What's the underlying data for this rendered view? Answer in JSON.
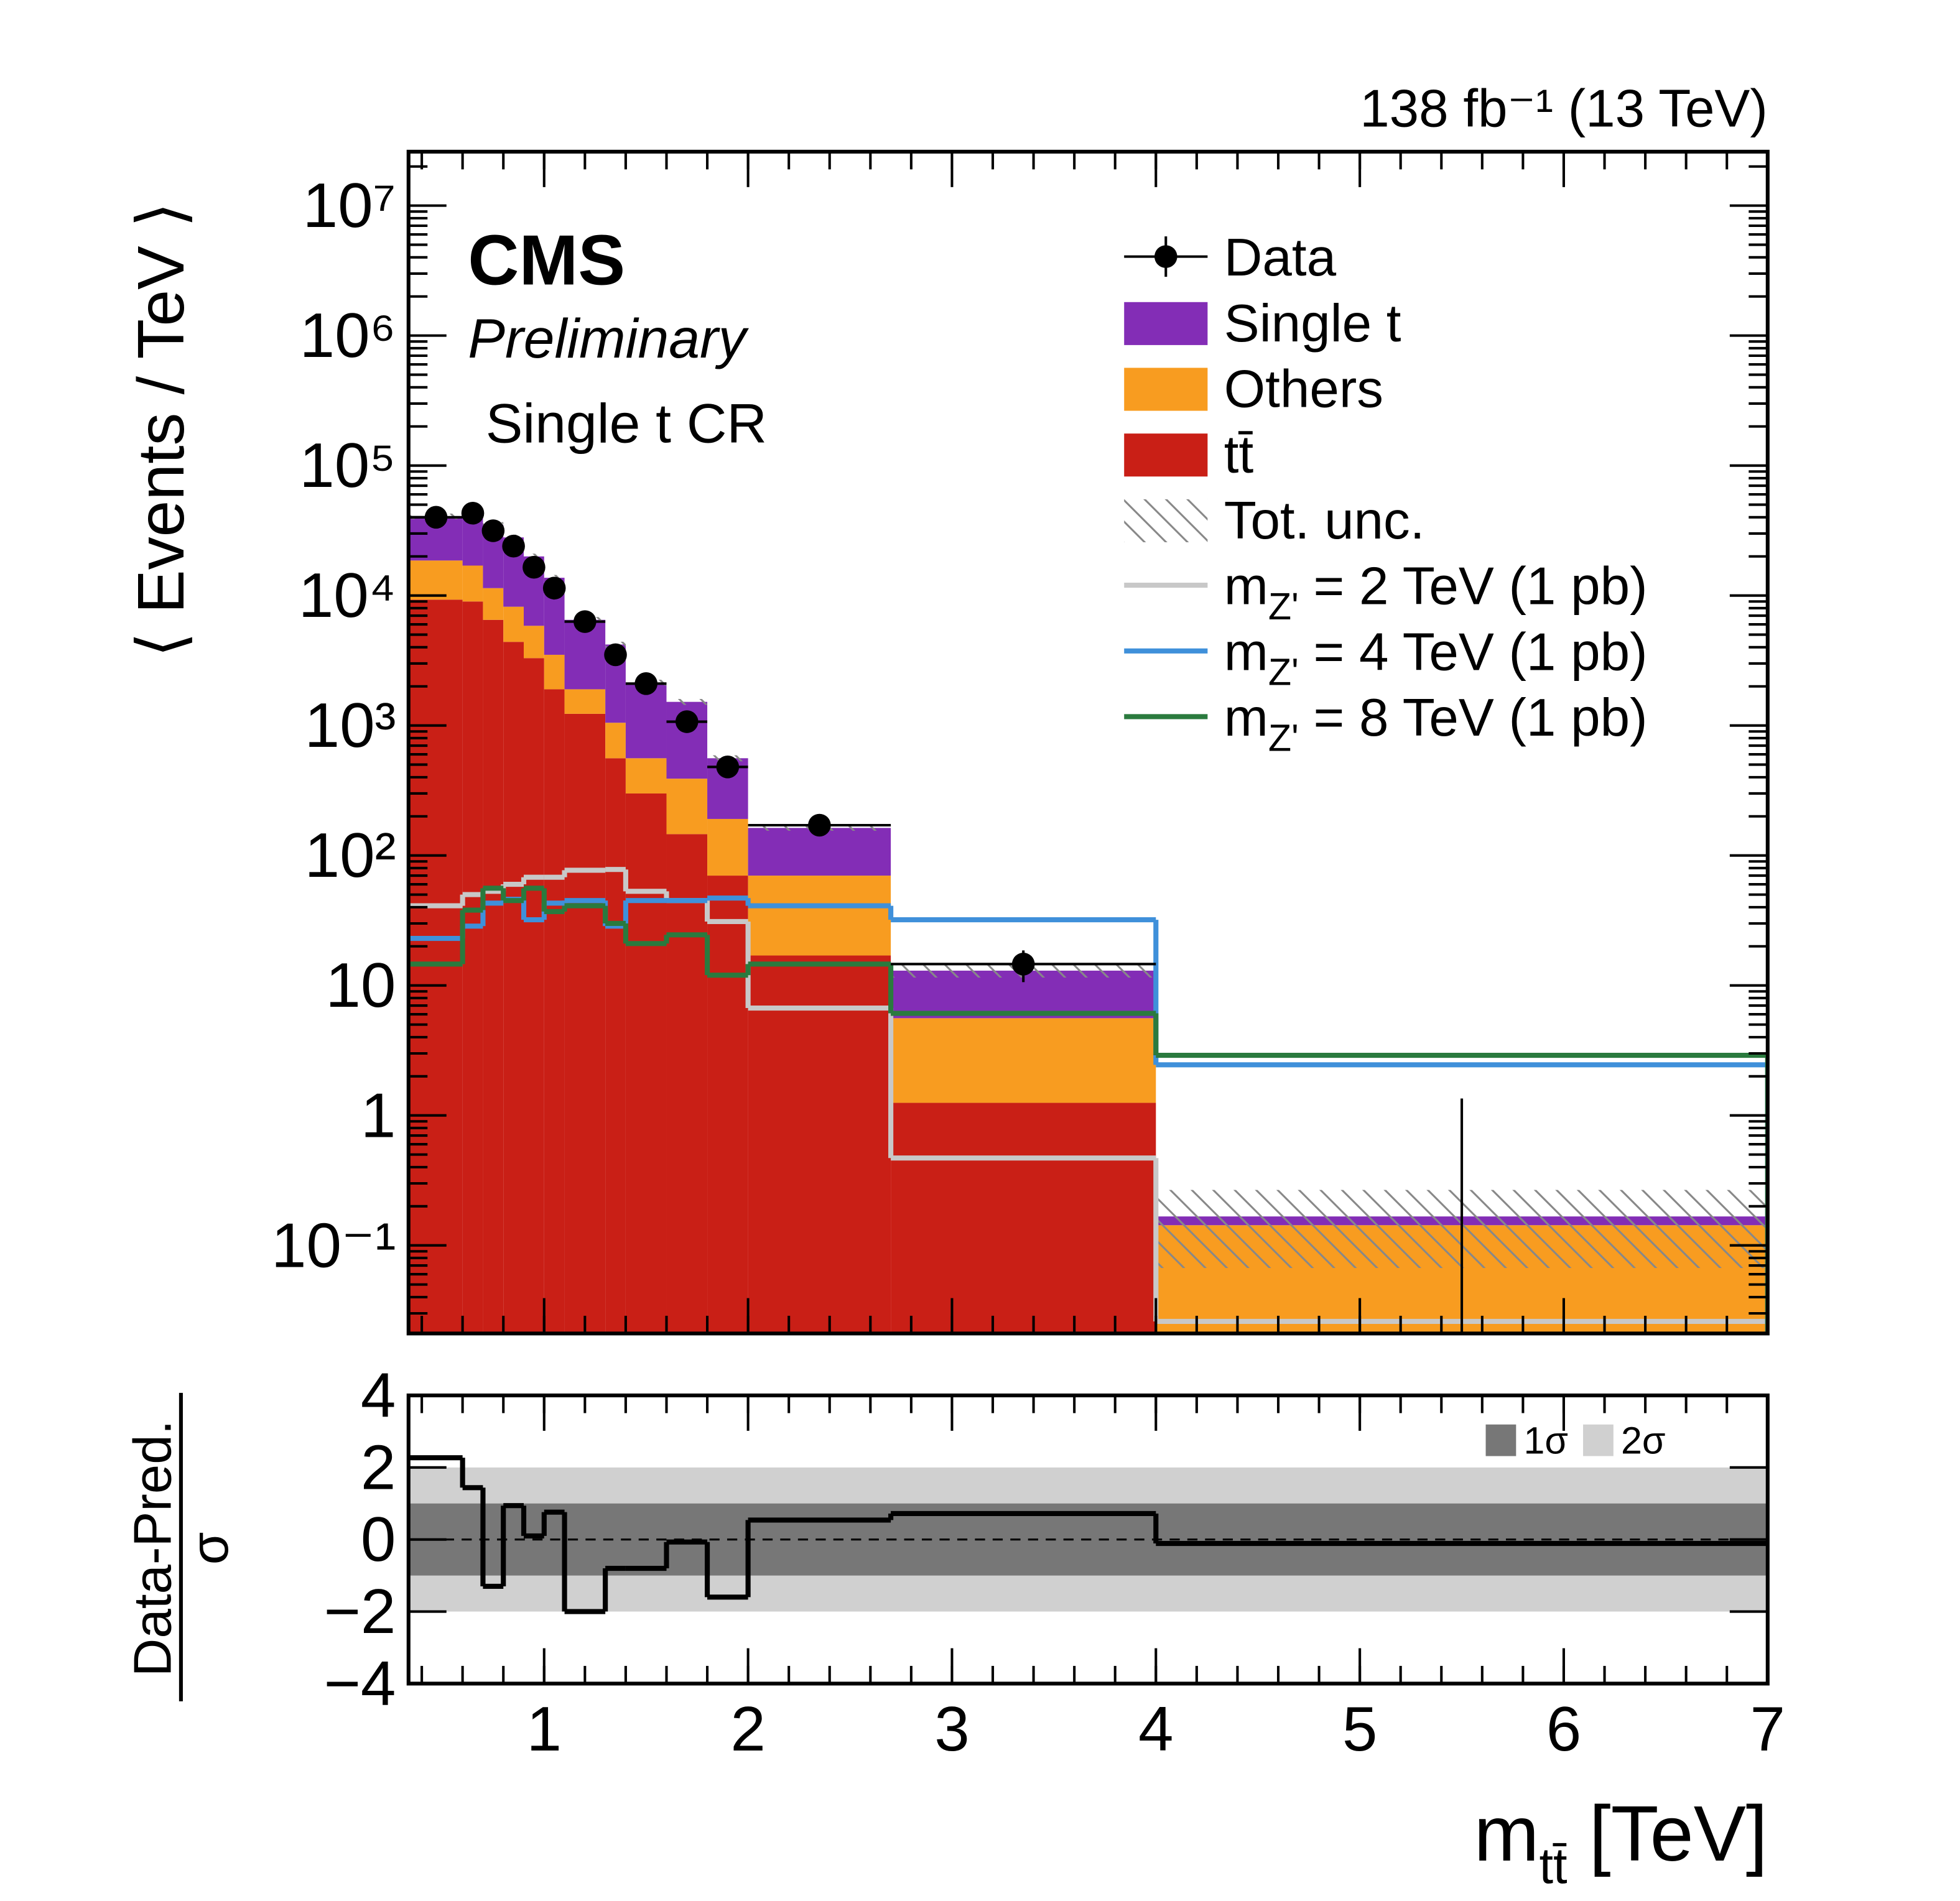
{
  "chart_data": [
    {
      "type": "stacked_histogram",
      "lumi_label": "138 fb⁻¹ (13 TeV)",
      "cms_label": "CMS",
      "preliminary_label": "Preliminary",
      "region_label": "Single t CR",
      "ylabel": "⟨ Events / TeV ⟩",
      "log_y": true,
      "bins": [
        0.34,
        0.6,
        0.7,
        0.8,
        0.9,
        1.0,
        1.1,
        1.3,
        1.4,
        1.6,
        1.8,
        2.0,
        2.7,
        4.0,
        7.0
      ],
      "xlim": [
        0.335,
        7
      ],
      "ylim": [
        0.021,
        26000000
      ],
      "yticks": [
        {
          "value": 0.1,
          "label": "10⁻¹"
        },
        1,
        10,
        {
          "value": 100,
          "label": "10²"
        },
        {
          "value": 1000,
          "label": "10³"
        },
        {
          "value": 10000,
          "label": "10⁴"
        },
        {
          "value": 100000,
          "label": "10⁵"
        },
        {
          "value": 1000000,
          "label": "10⁶"
        },
        {
          "value": 10000000,
          "label": "10⁷"
        }
      ],
      "series": [
        {
          "name": "tt̄",
          "color": "#c91f16",
          "values": [
            9300,
            9000,
            6500,
            4400,
            3300,
            1900,
            1230,
            560,
            300,
            146,
            70,
            17,
            1.25,
            0.01
          ]
        },
        {
          "name": "Others",
          "color": "#f89c20",
          "values": [
            9300,
            8000,
            4900,
            3800,
            2550,
            1600,
            670,
            490,
            260,
            244,
            121,
            53,
            4.35,
            0.133
          ]
        },
        {
          "name": "Single t",
          "color": "#832db6",
          "values": [
            22100,
            23700,
            23600,
            19800,
            14150,
            10200,
            4600,
            3150,
            1580,
            1130,
            369,
            93,
            7.4,
            0.024
          ]
        }
      ],
      "uncertainty": {
        "name": "Tot. unc.",
        "values": [
          2000,
          2000,
          1700,
          1400,
          1000,
          700,
          330,
          210,
          110,
          80,
          30,
          8,
          1.5,
          0.1
        ]
      },
      "data": {
        "name": "Data",
        "color": "#000000",
        "values": [
          40000,
          43000,
          31500,
          24000,
          16500,
          11400,
          6300,
          3500,
          2100,
          1070,
          480,
          171,
          14.6,
          0
        ],
        "errors": [
          400,
          400,
          350,
          300,
          250,
          200,
          150,
          110,
          80,
          60,
          40,
          15,
          4,
          1.35
        ]
      },
      "signals": [
        {
          "name": [
            "m",
            "Z'",
            " = 2 TeV (1 pb)"
          ],
          "color": "#c8c8c8",
          "values": [
            41,
            50,
            53,
            60,
            68,
            68,
            77,
            78,
            53,
            45,
            31,
            6.7,
            0.47,
            0.026
          ]
        },
        {
          "name": [
            "m",
            "Z'",
            " = 4 TeV (1 pb)"
          ],
          "color": "#3f90da",
          "values": [
            23,
            28.6,
            43,
            46,
            32,
            43,
            45,
            28.6,
            45,
            45,
            47,
            41,
            32,
            2.45
          ]
        },
        {
          "name": [
            "m",
            "Z'",
            " = 8 TeV (1 pb)"
          ],
          "color": "#2a7a3e",
          "values": [
            14.6,
            38,
            56,
            45,
            56,
            37,
            41,
            30,
            21,
            24.5,
            12,
            14.6,
            6.1,
            2.9
          ]
        }
      ]
    },
    {
      "type": "step",
      "ylabel": [
        "Data-Pred.",
        "σ"
      ],
      "xlabel": [
        "m",
        "tt̄",
        " [TeV]"
      ],
      "values": [
        2.27,
        1.44,
        -1.3,
        0.94,
        0.1,
        0.76,
        -2.0,
        -0.8,
        -0.8,
        -0.07,
        -1.6,
        0.54,
        0.72,
        -0.11
      ],
      "ylim": [
        -4,
        4
      ],
      "yticks": [
        {
          "value": -4,
          "label": "−4"
        },
        {
          "value": -2,
          "label": "−2"
        },
        0,
        2,
        4
      ],
      "xticks": [
        1,
        2,
        3,
        4,
        5,
        6,
        7
      ],
      "bands": [
        {
          "name": "1σ",
          "color": "#777777",
          "value": 1
        },
        {
          "name": "2σ",
          "color": "#d0d0d0",
          "value": 2
        }
      ]
    }
  ]
}
